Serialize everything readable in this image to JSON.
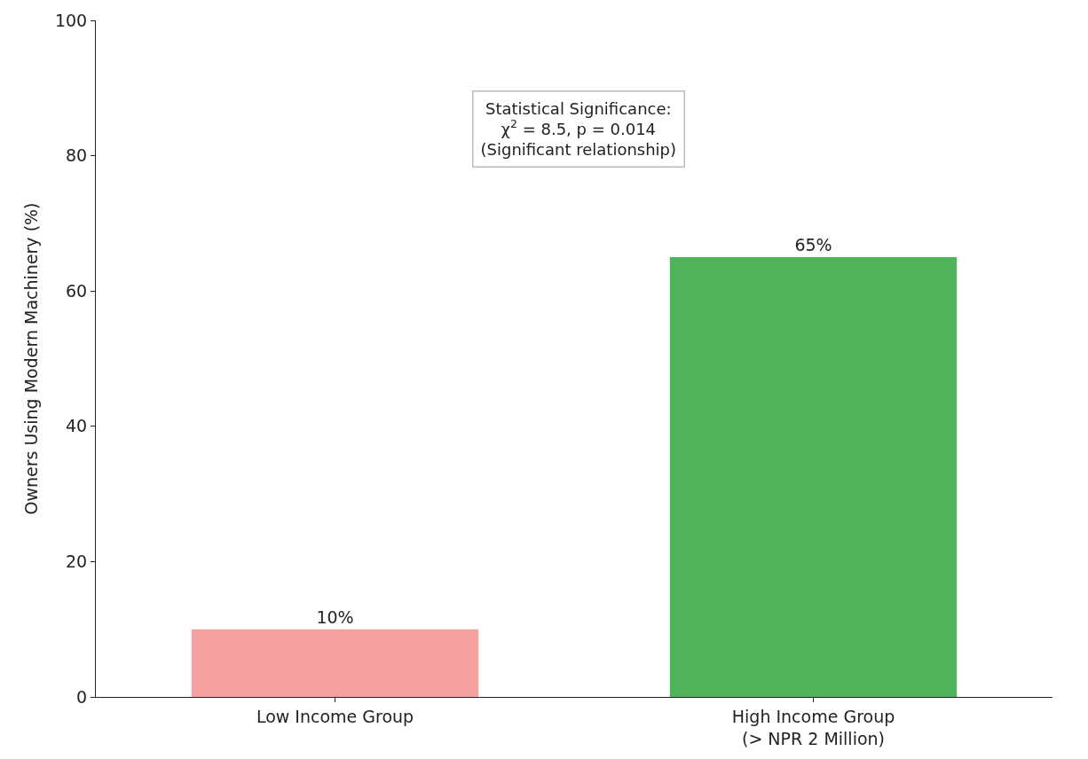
{
  "chart_data": {
    "type": "bar",
    "ylabel": "Owners Using Modern Machinery (%)",
    "categories": [
      "Low Income Group",
      "High Income Group\n(> NPR 2 Million)"
    ],
    "values": [
      10,
      65
    ],
    "colors": [
      "#f4a0a0",
      "#4fb35a"
    ],
    "value_labels": [
      "10%",
      "65%"
    ],
    "ylim": [
      0,
      100
    ],
    "yticks": [
      0,
      20,
      40,
      60,
      80,
      100
    ],
    "annotations": [
      "Statistical Significance:\nχ$^{2}$ = 8.5, p = 0.014\n(Significant relationship)"
    ]
  }
}
